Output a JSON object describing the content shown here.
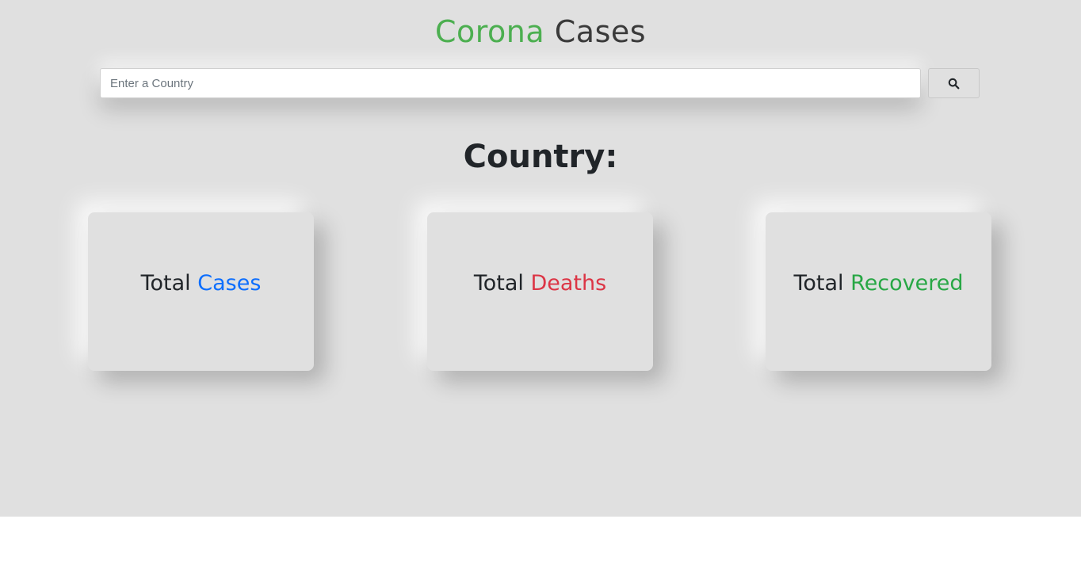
{
  "header": {
    "title_part1": "Corona",
    "title_part2": "Cases",
    "colors": {
      "part1": "#4caf50",
      "part2": "#3a3a3a"
    }
  },
  "search": {
    "placeholder": "Enter a Country",
    "value": "",
    "button_icon": "search-icon"
  },
  "country": {
    "label": "Country:"
  },
  "cards": [
    {
      "prefix": "Total",
      "highlight": "Cases",
      "color": "#0d6efd"
    },
    {
      "prefix": "Total",
      "highlight": "Deaths",
      "color": "#dc3545"
    },
    {
      "prefix": "Total",
      "highlight": "Recovered",
      "color": "#28a745"
    }
  ]
}
